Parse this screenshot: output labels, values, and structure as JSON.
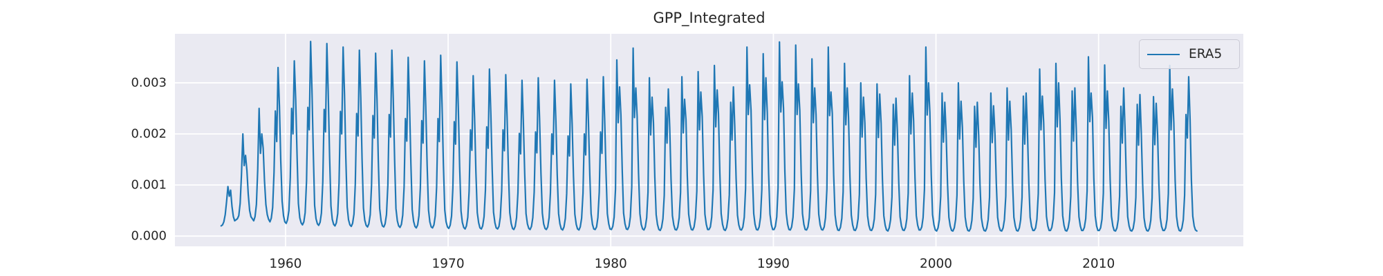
{
  "title": "GPP_Integrated",
  "legend": {
    "entries": [
      {
        "label": "ERA5",
        "color": "#1f77b4"
      }
    ]
  },
  "style": {
    "axes_bg": "#eaeaf2",
    "grid_color": "#ffffff",
    "text_color": "#262626",
    "line_color": "#1f77b4",
    "legend_bg": "rgba(236,236,243,0.85)",
    "legend_border": "#c9c9d4"
  },
  "chart_data": {
    "type": "line",
    "title": "GPP_Integrated",
    "xlabel": "",
    "ylabel": "",
    "grid": true,
    "legend_position": "upper right",
    "xlim": [
      1953.2,
      2018.9
    ],
    "ylim": [
      -0.0002,
      0.00396
    ],
    "x_ticks": [
      1960,
      1970,
      1980,
      1990,
      2000,
      2010
    ],
    "x_tick_labels": [
      "1960",
      "1970",
      "1980",
      "1990",
      "2000",
      "2010"
    ],
    "y_tick_values": [
      0,
      0.001,
      0.002,
      0.003
    ],
    "y_tick_labels": [
      "0.000",
      "0.001",
      "0.002",
      "0.003"
    ],
    "series": [
      {
        "name": "ERA5",
        "color": "#1f77b4",
        "cadence": "monthly",
        "value_unit": 1e-05,
        "years": [
          [
            1956,
            [
              20,
              22,
              28,
              42,
              68,
              97,
              78,
              90,
              58,
              38,
              30,
              32
            ]
          ],
          [
            1957,
            [
              34,
              40,
              64,
              120,
              200,
              138,
              158,
              128,
              82,
              50,
              38,
              34
            ]
          ],
          [
            1958,
            [
              30,
              38,
              62,
              130,
              250,
              162,
              200,
              172,
              108,
              62,
              42,
              33
            ]
          ],
          [
            1959,
            [
              28,
              35,
              56,
              125,
              245,
              185,
              330,
              255,
              148,
              68,
              40,
              28
            ]
          ],
          [
            1960,
            [
              25,
              32,
              50,
              115,
              250,
              200,
              343,
              268,
              158,
              64,
              36,
              26
            ]
          ],
          [
            1961,
            [
              22,
              28,
              46,
              108,
              252,
              208,
              381,
              288,
              162,
              60,
              34,
              24
            ]
          ],
          [
            1962,
            [
              21,
              27,
              45,
              106,
              248,
              204,
              377,
              283,
              158,
              59,
              33,
              23
            ]
          ],
          [
            1963,
            [
              20,
              26,
              44,
              104,
              244,
              200,
              370,
              278,
              154,
              57,
              32,
              22
            ]
          ],
          [
            1964,
            [
              19,
              25,
              43,
              102,
              240,
              196,
              364,
              272,
              150,
              55,
              31,
              21
            ]
          ],
          [
            1965,
            [
              18,
              24,
              42,
              100,
              236,
              192,
              358,
              268,
              147,
              54,
              30,
              20
            ]
          ],
          [
            1966,
            [
              18,
              24,
              42,
              100,
              238,
              194,
              364,
              270,
              148,
              54,
              30,
              20
            ]
          ],
          [
            1967,
            [
              17,
              23,
              41,
              97,
              230,
              186,
              350,
              260,
              142,
              52,
              29,
              19
            ]
          ],
          [
            1968,
            [
              16,
              22,
              40,
              95,
              226,
              182,
              343,
              254,
              139,
              51,
              28,
              18
            ]
          ],
          [
            1969,
            [
              16,
              22,
              40,
              96,
              230,
              185,
              354,
              260,
              141,
              51,
              28,
              18
            ]
          ],
          [
            1970,
            [
              15,
              21,
              39,
              94,
              224,
              180,
              341,
              251,
              136,
              49,
              27,
              17
            ]
          ],
          [
            1971,
            [
              14,
              20,
              37,
              88,
              208,
              168,
              314,
              232,
              126,
              46,
              26,
              16
            ]
          ],
          [
            1972,
            [
              14,
              20,
              38,
              90,
              214,
              172,
              327,
              241,
              130,
              47,
              26,
              16
            ]
          ],
          [
            1973,
            [
              14,
              19,
              37,
              88,
              208,
              167,
              316,
              234,
              126,
              46,
              25,
              15
            ]
          ],
          [
            1974,
            [
              13,
              19,
              36,
              85,
              201,
              161,
              305,
              226,
              122,
              44,
              24,
              15
            ]
          ],
          [
            1975,
            [
              13,
              19,
              36,
              86,
              204,
              163,
              310,
              229,
              123,
              45,
              24,
              15
            ]
          ],
          [
            1976,
            [
              13,
              18,
              36,
              85,
              200,
              160,
              305,
              225,
              121,
              44,
              24,
              14
            ]
          ],
          [
            1977,
            [
              12,
              18,
              35,
              83,
              196,
              157,
              298,
              220,
              118,
              43,
              23,
              14
            ]
          ],
          [
            1978,
            [
              12,
              18,
              35,
              84,
              200,
              159,
              307,
              227,
              121,
              44,
              23,
              14
            ]
          ],
          [
            1979,
            [
              13,
              18,
              36,
              86,
              204,
              162,
              312,
              230,
              123,
              44,
              24,
              14
            ]
          ],
          [
            1980,
            [
              13,
              19,
              37,
              92,
              345,
              222,
              292,
              238,
              126,
              45,
              24,
              14
            ]
          ],
          [
            1981,
            [
              13,
              19,
              38,
              96,
              368,
              232,
              290,
              234,
              123,
              44,
              23,
              14
            ]
          ],
          [
            1982,
            [
              12,
              18,
              36,
              86,
              310,
              198,
              272,
              222,
              117,
              42,
              23,
              13
            ]
          ],
          [
            1983,
            [
              11,
              17,
              34,
              80,
              252,
              182,
              288,
              213,
              112,
              40,
              22,
              13
            ]
          ],
          [
            1984,
            [
              12,
              18,
              36,
              86,
              312,
              202,
              268,
              228,
              119,
              43,
              23,
              13
            ]
          ],
          [
            1985,
            [
              12,
              18,
              36,
              88,
              322,
              208,
              282,
              234,
              121,
              43,
              23,
              13
            ]
          ],
          [
            1986,
            [
              13,
              18,
              37,
              90,
              334,
              214,
              286,
              240,
              123,
              44,
              23,
              13
            ]
          ],
          [
            1987,
            [
              11,
              17,
              34,
              81,
              262,
              188,
              292,
              217,
              113,
              41,
              22,
              13
            ]
          ],
          [
            1988,
            [
              12,
              18,
              37,
              93,
              370,
              238,
              296,
              246,
              125,
              44,
              23,
              13
            ]
          ],
          [
            1989,
            [
              12,
              18,
              37,
              91,
              357,
              228,
              310,
              242,
              123,
              43,
              23,
              13
            ]
          ],
          [
            1990,
            [
              13,
              19,
              38,
              95,
              380,
              243,
              302,
              250,
              127,
              45,
              23,
              13
            ]
          ],
          [
            1991,
            [
              12,
              18,
              37,
              93,
              374,
              238,
              298,
              246,
              124,
              44,
              23,
              13
            ]
          ],
          [
            1992,
            [
              12,
              18,
              36,
              89,
              347,
              222,
              290,
              238,
              121,
              43,
              22,
              13
            ]
          ],
          [
            1993,
            [
              12,
              18,
              36,
              92,
              370,
              236,
              282,
              240,
              120,
              42,
              22,
              12
            ]
          ],
          [
            1994,
            [
              11,
              17,
              35,
              87,
              338,
              218,
              290,
              232,
              117,
              41,
              22,
              12
            ]
          ],
          [
            1995,
            [
              11,
              17,
              34,
              82,
              300,
              194,
              272,
              222,
              113,
              40,
              21,
              12
            ]
          ],
          [
            1996,
            [
              11,
              17,
              34,
              82,
              298,
              193,
              278,
              221,
              112,
              40,
              21,
              12
            ]
          ],
          [
            1997,
            [
              10,
              16,
              32,
              77,
              258,
              178,
              270,
              207,
              106,
              38,
              20,
              12
            ]
          ],
          [
            1998,
            [
              11,
              17,
              34,
              84,
              314,
              200,
              280,
              226,
              114,
              40,
              21,
              12
            ]
          ],
          [
            1999,
            [
              12,
              18,
              36,
              92,
              370,
              237,
              300,
              242,
              120,
              42,
              22,
              12
            ]
          ],
          [
            2000,
            [
              10,
              16,
              32,
              78,
              280,
              184,
              262,
              202,
              104,
              37,
              20,
              11
            ]
          ],
          [
            2001,
            [
              10,
              16,
              33,
              80,
              300,
              190,
              264,
              212,
              108,
              38,
              20,
              11
            ]
          ],
          [
            2002,
            [
              10,
              15,
              31,
              74,
              254,
              174,
              262,
              198,
              101,
              36,
              19,
              11
            ]
          ],
          [
            2003,
            [
              10,
              16,
              32,
              76,
              280,
              183,
              255,
              202,
              103,
              37,
              19,
              11
            ]
          ],
          [
            2004,
            [
              10,
              16,
              32,
              78,
              290,
              188,
              264,
              208,
              106,
              37,
              20,
              11
            ]
          ],
          [
            2005,
            [
              10,
              16,
              32,
              76,
              274,
              180,
              280,
              206,
              105,
              37,
              19,
              11
            ]
          ],
          [
            2006,
            [
              11,
              16,
              33,
              83,
              327,
              208,
              274,
              222,
              111,
              39,
              20,
              11
            ]
          ],
          [
            2007,
            [
              11,
              17,
              34,
              85,
              338,
              214,
              300,
              228,
              114,
              40,
              21,
              11
            ]
          ],
          [
            2008,
            [
              10,
              16,
              32,
              78,
              284,
              186,
              290,
              210,
              107,
              38,
              20,
              11
            ]
          ],
          [
            2009,
            [
              11,
              17,
              34,
              88,
              351,
              224,
              280,
              232,
              114,
              40,
              20,
              11
            ]
          ],
          [
            2010,
            [
              11,
              16,
              33,
              84,
              335,
              211,
              284,
              225,
              111,
              39,
              20,
              11
            ]
          ],
          [
            2011,
            [
              10,
              16,
              32,
              78,
              254,
              182,
              290,
              212,
              107,
              38,
              20,
              11
            ]
          ],
          [
            2012,
            [
              10,
              15,
              31,
              76,
              258,
              178,
              277,
              203,
              103,
              36,
              19,
              11
            ]
          ],
          [
            2013,
            [
              10,
              15,
              31,
              75,
              273,
              179,
              260,
              200,
              102,
              36,
              19,
              11
            ]
          ],
          [
            2014,
            [
              11,
              16,
              33,
              83,
              334,
              208,
              288,
              222,
              110,
              39,
              20,
              11
            ]
          ],
          [
            2015,
            [
              10,
              16,
              32,
              80,
              238,
              192,
              312,
              228,
              110,
              39,
              20,
              12
            ]
          ],
          [
            2016,
            [
              10
            ]
          ]
        ]
      }
    ]
  }
}
